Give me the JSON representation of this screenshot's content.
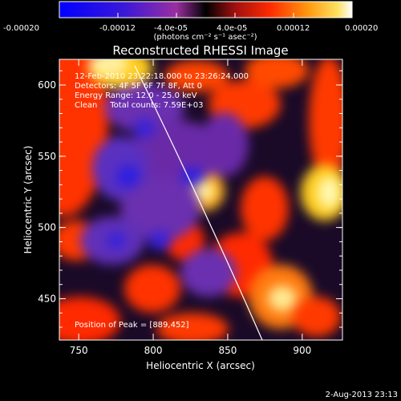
{
  "colorbar": {
    "tick_labels": [
      "-0.00020",
      "-0.00012",
      "-4.0e-05",
      "4.0e-05",
      "0.00012",
      "0.00020"
    ],
    "tick_values": [
      -0.0002,
      -0.00012,
      -4e-05,
      4e-05,
      0.00012,
      0.0002
    ],
    "unit_label": "(photons cm⁻² s⁻¹ asec⁻²)",
    "range": [
      -0.0002,
      0.0002
    ]
  },
  "plot": {
    "title": "Reconstructed RHESSI Image",
    "info_lines": [
      "12-Feb-2010 23:22:18.000 to 23:26:24.000",
      "Detectors: 4F 5F 6F 7F 8F, Att 0",
      "Energy Range: 12.0 - 25.0 keV",
      "Clean     Total counts: 7.59E+03"
    ],
    "peak_label": "Position of Peak = [889,452]",
    "xlabel": "Heliocentric X (arcsec)",
    "ylabel": "Heliocentric Y (arcsec)",
    "xlim": [
      737,
      927
    ],
    "ylim": [
      421,
      618
    ],
    "x_ticks": [
      750,
      800,
      850,
      900
    ],
    "y_ticks": [
      450,
      500,
      550,
      600
    ],
    "peak": [
      889,
      452
    ]
  },
  "footer": {
    "date": "2-Aug-2013 23:13"
  }
}
